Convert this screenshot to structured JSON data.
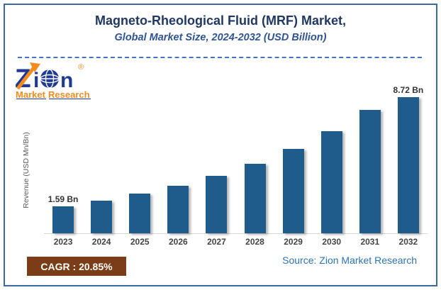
{
  "header": {
    "title": "Magneto-Rheological Fluid (MRF) Market,",
    "subtitle": "Global Market Size, 2024-2032 (USD Billion)"
  },
  "logo": {
    "brand_z": "Z",
    "brand_i": "i",
    "brand_n": "n",
    "registered": "®",
    "word_market": "Market",
    "word_research": "Research"
  },
  "chart_data": {
    "type": "bar",
    "title": "Magneto-Rheological Fluid (MRF) Market, Global Market Size, 2024-2032 (USD Billion)",
    "categories": [
      "2023",
      "2024",
      "2025",
      "2026",
      "2027",
      "2028",
      "2029",
      "2030",
      "2031",
      "2032"
    ],
    "values": [
      1.59,
      1.92,
      2.32,
      2.81,
      3.39,
      4.1,
      4.95,
      5.99,
      7.24,
      8.72
    ],
    "point_labels": [
      "1.59 Bn",
      "",
      "",
      "",
      "",
      "",
      "",
      "",
      "",
      "8.72 Bn"
    ],
    "xlabel": "",
    "ylabel": "Revenue (USD Mn/Bn)",
    "ylim": [
      0,
      8.72
    ],
    "grid": false,
    "legend": false,
    "bar_color": "#1F5C8C"
  },
  "footer": {
    "cagr": "CAGR : 20.85%",
    "source": "Source: Zion Market Research"
  },
  "colors": {
    "title_text": "#1F3864",
    "subtitle_text": "#2F5496",
    "border": "#3A6BA0",
    "divider": "#4472C4",
    "bar": "#1F5C8C",
    "axis_line": "#D6D6D6",
    "tick_text": "#444444",
    "cagr_bg": "#7B3D17",
    "cagr_text": "#FFFFFF",
    "source_text": "#2E74B5",
    "logo_blue": "#1E3A94",
    "logo_orange": "#F68B1F"
  }
}
